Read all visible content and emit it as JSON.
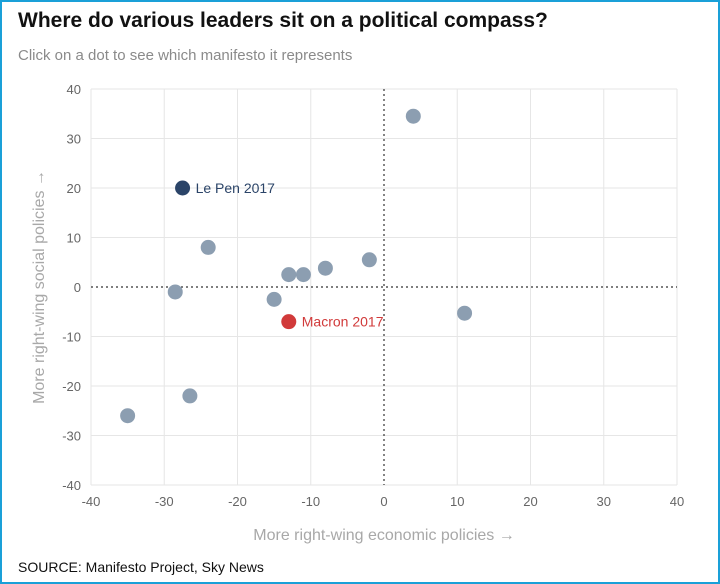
{
  "header": {
    "title": "Where do various leaders sit on a political compass?",
    "subtitle": "Click on a dot to see which manifesto it represents"
  },
  "footer": {
    "source": "SOURCE: Manifesto Project, Sky News"
  },
  "colors": {
    "default_point": "#8c9eb1",
    "lepen_point": "#2b4468",
    "macron_point": "#d13a3a",
    "grid": "#e6e6e6",
    "frame": "#1aa0d8"
  },
  "chart_data": {
    "type": "scatter",
    "title": "Where do various leaders sit on a political compass?",
    "xlabel": "More right-wing economic policies →",
    "ylabel": "More right-wing social policies →",
    "xlim": [
      -40,
      40
    ],
    "ylim": [
      -40,
      40
    ],
    "xticks": [
      -40,
      -30,
      -20,
      -10,
      0,
      10,
      20,
      30,
      40
    ],
    "yticks": [
      -40,
      -30,
      -20,
      -10,
      0,
      10,
      20,
      30,
      40
    ],
    "grid": true,
    "points": [
      {
        "x": -27.5,
        "y": 20,
        "label": "Le Pen 2017",
        "color": "#2b4468"
      },
      {
        "x": -13,
        "y": -7,
        "label": "Macron 2017",
        "color": "#d13a3a"
      },
      {
        "x": 4,
        "y": 34.5,
        "label": "",
        "color": "#8c9eb1"
      },
      {
        "x": -24,
        "y": 8,
        "label": "",
        "color": "#8c9eb1"
      },
      {
        "x": -28.5,
        "y": -1,
        "label": "",
        "color": "#8c9eb1"
      },
      {
        "x": -13,
        "y": 2.5,
        "label": "",
        "color": "#8c9eb1"
      },
      {
        "x": -11,
        "y": 2.5,
        "label": "",
        "color": "#8c9eb1"
      },
      {
        "x": -8,
        "y": 3.8,
        "label": "",
        "color": "#8c9eb1"
      },
      {
        "x": -2,
        "y": 5.5,
        "label": "",
        "color": "#8c9eb1"
      },
      {
        "x": -15,
        "y": -2.5,
        "label": "",
        "color": "#8c9eb1"
      },
      {
        "x": 11,
        "y": -5.3,
        "label": "",
        "color": "#8c9eb1"
      },
      {
        "x": -26.5,
        "y": -22,
        "label": "",
        "color": "#8c9eb1"
      },
      {
        "x": -35,
        "y": -26,
        "label": "",
        "color": "#8c9eb1"
      }
    ]
  }
}
